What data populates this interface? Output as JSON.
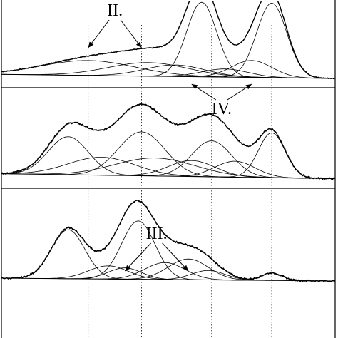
{
  "chart_data": {
    "type": "line",
    "xlim": [
      0,
      100
    ],
    "ylim": [
      0,
      1
    ],
    "reference_lines_x": [
      26,
      42,
      63,
      81
    ],
    "panels": [
      {
        "baseline": [
          [
            0,
            0.06
          ],
          [
            100,
            0.0
          ]
        ],
        "components": [
          {
            "center": 26,
            "height": 0.22,
            "width": 14
          },
          {
            "center": 44,
            "height": 0.2,
            "width": 12
          },
          {
            "center": 52,
            "height": 0.17,
            "width": 9
          },
          {
            "center": 60,
            "height": 1.1,
            "width": 4.5
          },
          {
            "center": 67,
            "height": 0.12,
            "width": 7
          },
          {
            "center": 75,
            "height": 0.25,
            "width": 6
          },
          {
            "center": 81,
            "height": 1.1,
            "width": 4.5
          }
        ],
        "noise": 0.012,
        "labels": [
          {
            "text": "II.",
            "targets": [
              26,
              42
            ],
            "anchor": "top"
          },
          {
            "text": "IV.",
            "targets": [
              57,
              75
            ],
            "anchor": "bottom"
          }
        ]
      },
      {
        "baseline": [
          [
            0,
            0.06
          ],
          [
            100,
            0.01
          ]
        ],
        "components": [
          {
            "center": 20,
            "height": 0.38,
            "width": 6
          },
          {
            "center": 30,
            "height": 0.18,
            "width": 10
          },
          {
            "center": 42,
            "height": 0.44,
            "width": 7
          },
          {
            "center": 46,
            "height": 0.18,
            "width": 12
          },
          {
            "center": 57,
            "height": 0.16,
            "width": 7
          },
          {
            "center": 63,
            "height": 0.36,
            "width": 6
          },
          {
            "center": 70,
            "height": 0.16,
            "width": 6
          },
          {
            "center": 81,
            "height": 0.45,
            "width": 4
          }
        ],
        "noise": 0.018,
        "labels": []
      },
      {
        "baseline": [
          [
            0,
            0.03
          ],
          [
            100,
            0.0
          ]
        ],
        "components": [
          {
            "center": 20,
            "height": 0.52,
            "width": 5
          },
          {
            "center": 32,
            "height": 0.14,
            "width": 6
          },
          {
            "center": 37,
            "height": 0.12,
            "width": 5
          },
          {
            "center": 41,
            "height": 0.62,
            "width": 5
          },
          {
            "center": 49,
            "height": 0.18,
            "width": 6
          },
          {
            "center": 56,
            "height": 0.22,
            "width": 6
          },
          {
            "center": 62,
            "height": 0.1,
            "width": 5
          },
          {
            "center": 81,
            "height": 0.08,
            "width": 3
          }
        ],
        "noise": 0.018,
        "labels": [
          {
            "text": "III.",
            "targets": [
              37,
              56
            ],
            "anchor": "top"
          }
        ]
      }
    ]
  }
}
